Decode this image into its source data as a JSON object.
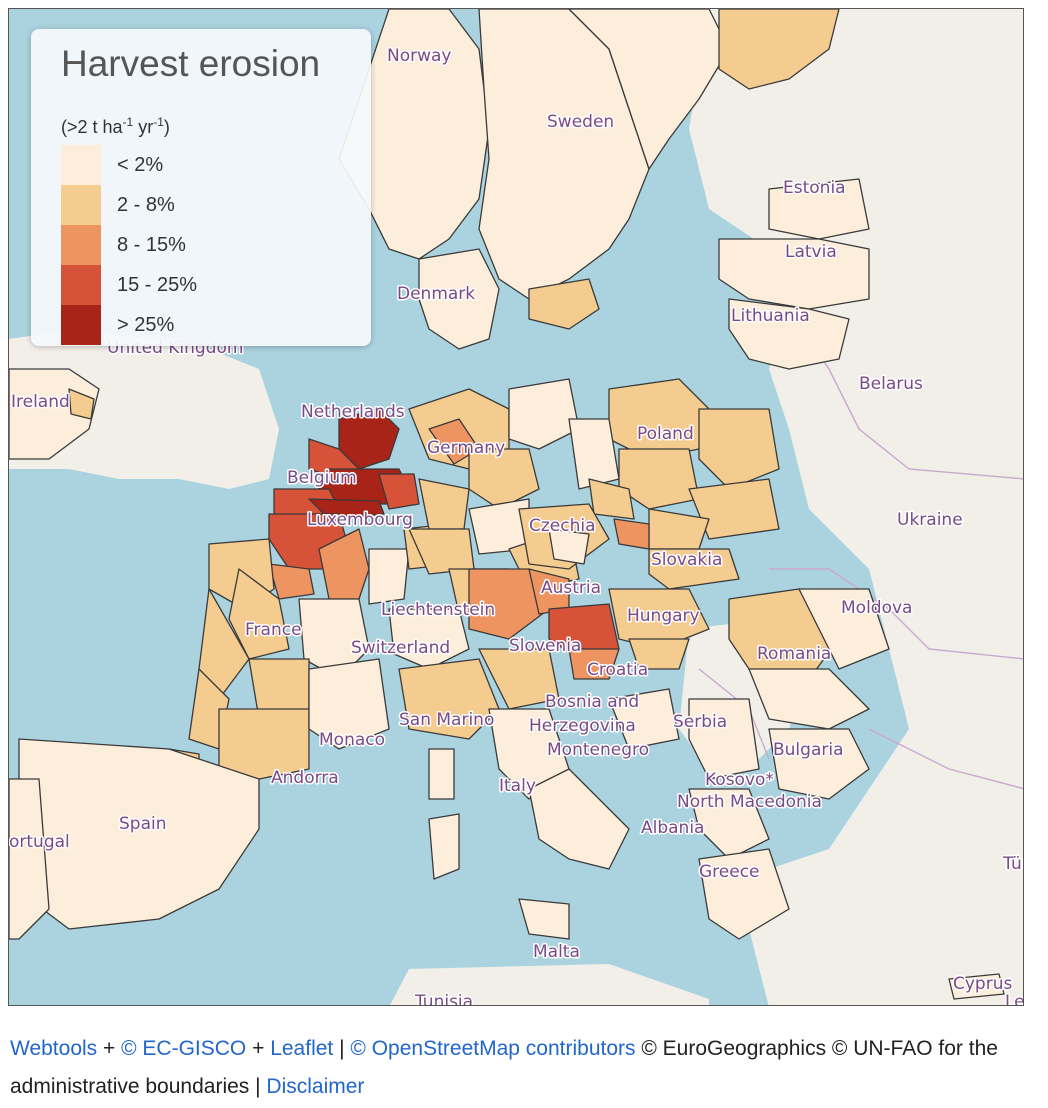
{
  "legend": {
    "title": "Harvest erosion",
    "unit_prefix": "(>2 t ha",
    "unit_exp1": "-1",
    "unit_mid": " yr",
    "unit_exp2": "-1",
    "unit_suffix": ")",
    "classes": [
      {
        "label": "< 2%",
        "color": "#fdeedb"
      },
      {
        "label": "2 - 8%",
        "color": "#f5cc8f"
      },
      {
        "label": "8 - 15%",
        "color": "#ee9460"
      },
      {
        "label": "15 - 25%",
        "color": "#d65238"
      },
      {
        "label": "> 25%",
        "color": "#a82318"
      }
    ]
  },
  "map_labels": {
    "norway": "Norway",
    "sweden": "Sweden",
    "estonia": "Estonia",
    "latvia": "Latvia",
    "denmark": "Denmark",
    "lithuania": "Lithuania",
    "united_kingdom": "United Kingdom",
    "ireland": "Ireland",
    "belarus": "Belarus",
    "netherlands": "Netherlands",
    "germany": "Germany",
    "poland": "Poland",
    "belgium": "Belgium",
    "luxembourg": "Luxembourg",
    "czechia": "Czechia",
    "ukraine": "Ukraine",
    "slovakia": "Slovakia",
    "austria": "Austria",
    "moldova": "Moldova",
    "liechtenstein": "Liechtenstein",
    "hungary": "Hungary",
    "france": "France",
    "switzerland": "Switzerland",
    "slovenia": "Slovenia",
    "romania": "Romania",
    "croatia": "Croatia",
    "bosnia_1": "Bosnia and",
    "bosnia_2": "Herzegovina",
    "san_marino": "San Marino",
    "serbia": "Serbia",
    "monaco": "Monaco",
    "montenegro": "Montenegro",
    "bulgaria": "Bulgaria",
    "andorra": "Andorra",
    "kosovo": "Kosovo*",
    "italy": "Italy",
    "north_macedonia": "North Macedonia",
    "spain": "Spain",
    "portugal": "ortugal",
    "albania": "Albania",
    "turkey": "Tür",
    "greece": "Greece",
    "malta": "Malta",
    "cyprus": "Cyprus",
    "lebanon": "Leb",
    "tunisia": "Tunisia"
  },
  "footer": {
    "webtools": "Webtools",
    "plus1": " + ",
    "ec_gisco": "© EC-GISCO",
    "plus2": " + ",
    "leaflet": "Leaflet",
    "sep1": " | ",
    "osm": "© OpenStreetMap contributors",
    "rest": " © EuroGeographics © UN-FAO for the administrative boundaries | ",
    "disclaimer": "Disclaimer"
  }
}
